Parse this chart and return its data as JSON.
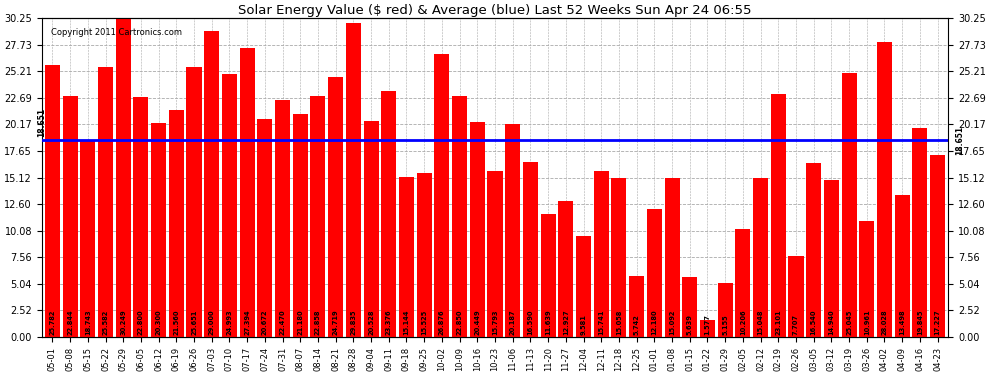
{
  "title": "Solar Energy Value ($ red) & Average (blue) Last 52 Weeks Sun Apr 24 06:55",
  "copyright": "Copyright 2011 Cartronics.com",
  "average": 18.651,
  "bar_color": "#ff0000",
  "avg_line_color": "#0000ff",
  "background_color": "#ffffff",
  "grid_color": "#aaaaaa",
  "categories": [
    "05-01",
    "05-08",
    "05-15",
    "05-22",
    "05-29",
    "06-05",
    "06-12",
    "06-19",
    "06-26",
    "07-03",
    "07-10",
    "07-17",
    "07-24",
    "07-31",
    "08-07",
    "08-14",
    "08-21",
    "08-28",
    "09-04",
    "09-11",
    "09-18",
    "09-25",
    "10-02",
    "10-09",
    "10-16",
    "10-23",
    "11-06",
    "11-13",
    "11-20",
    "11-27",
    "12-04",
    "12-11",
    "12-18",
    "12-25",
    "01-01",
    "01-08",
    "01-15",
    "01-22",
    "01-29",
    "02-05",
    "02-12",
    "02-19",
    "02-26",
    "03-05",
    "03-12",
    "03-19",
    "03-26",
    "04-02",
    "04-09",
    "04-16",
    "04-23"
  ],
  "values": [
    25.782,
    22.844,
    18.743,
    25.582,
    30.249,
    22.8,
    20.3,
    21.56,
    25.651,
    29.0,
    24.993,
    27.394,
    20.672,
    22.47,
    21.18,
    22.858,
    24.719,
    29.835,
    20.528,
    23.376,
    15.144,
    15.525,
    26.876,
    22.85,
    20.449,
    15.793,
    20.187,
    16.59,
    11.639,
    12.927,
    9.581,
    15.741,
    15.058,
    5.742,
    12.18,
    15.092,
    5.639,
    1.577,
    5.155,
    10.206,
    15.048,
    23.101,
    7.707,
    16.54,
    14.94,
    25.045,
    10.961,
    28.028,
    13.498,
    19.845,
    17.227
  ],
  "yticks": [
    0.0,
    2.52,
    5.04,
    7.56,
    10.08,
    12.6,
    15.12,
    17.65,
    20.17,
    22.69,
    25.21,
    27.73,
    30.25
  ],
  "ylim": [
    0,
    30.25
  ],
  "avg_label": "18.651",
  "fig_width": 9.9,
  "fig_height": 3.75
}
